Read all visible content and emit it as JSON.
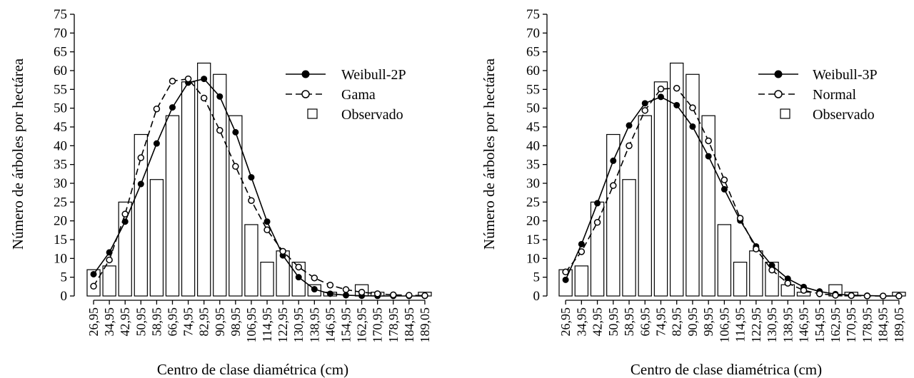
{
  "chart_data": [
    {
      "type": "bar",
      "xlabel": "Centro de clase diamétrica (cm)",
      "ylabel": "Número de árboles por hectárea",
      "ylim": [
        0,
        75
      ],
      "yticks": [
        0,
        5,
        10,
        15,
        20,
        25,
        30,
        35,
        40,
        45,
        50,
        55,
        60,
        65,
        70,
        75
      ],
      "categories": [
        "26,95",
        "34,95",
        "42,95",
        "50,95",
        "58,95",
        "66,95",
        "74,95",
        "82,95",
        "90,95",
        "98,95",
        "106,95",
        "114,95",
        "122,95",
        "130,95",
        "138,95",
        "146,95",
        "154,95",
        "162,95",
        "170,95",
        "178,95",
        "184,95",
        "189,05"
      ],
      "legend_position": "top-right",
      "series": [
        {
          "name": "Weibull-2P",
          "style": "solid",
          "marker": "filled-circle",
          "values": [
            5.8,
            11.6,
            19.8,
            29.8,
            40.6,
            50.2,
            56.8,
            57.8,
            53.1,
            43.6,
            31.6,
            19.8,
            10.8,
            5.0,
            1.8,
            0.6,
            0.2,
            0.05,
            0.02,
            0,
            0,
            0
          ]
        },
        {
          "name": "Gama",
          "style": "dashed",
          "marker": "open-circle",
          "values": [
            2.6,
            9.6,
            21.8,
            36.8,
            49.8,
            57.2,
            57.8,
            52.7,
            44.1,
            34.5,
            25.4,
            17.6,
            11.9,
            7.7,
            4.8,
            2.9,
            1.7,
            1.0,
            0.6,
            0.3,
            0.2,
            0.1
          ]
        },
        {
          "name": "Observado",
          "style": "bar",
          "values": [
            7,
            8,
            25,
            43,
            31,
            48,
            57,
            62,
            59,
            48,
            19,
            9,
            12,
            9,
            3,
            1,
            0,
            3,
            1,
            0,
            0,
            1
          ]
        }
      ]
    },
    {
      "type": "bar",
      "xlabel": "Centro de clase diamétrica (cm)",
      "ylabel": "Número de árboles por hectárea",
      "ylim": [
        0,
        75
      ],
      "yticks": [
        0,
        5,
        10,
        15,
        20,
        25,
        30,
        35,
        40,
        45,
        50,
        55,
        60,
        65,
        70,
        75
      ],
      "categories": [
        "26,95",
        "34,95",
        "42,95",
        "50,95",
        "58,95",
        "66,95",
        "74,95",
        "82,95",
        "90,95",
        "98,95",
        "106,95",
        "114,95",
        "122,95",
        "130,95",
        "138,95",
        "146,95",
        "154,95",
        "162,95",
        "170,95",
        "178,95",
        "184,95",
        "189,05"
      ],
      "legend_position": "top-right",
      "series": [
        {
          "name": "Weibull-3P",
          "style": "solid",
          "marker": "filled-circle",
          "values": [
            4.3,
            13.8,
            24.7,
            36.0,
            45.4,
            51.3,
            53.0,
            50.8,
            45.1,
            37.2,
            28.4,
            20.1,
            13.2,
            8.1,
            4.6,
            2.4,
            1.2,
            0.5,
            0.2,
            0.1,
            0,
            0
          ]
        },
        {
          "name": "Normal",
          "style": "dashed",
          "marker": "open-circle",
          "values": [
            6.4,
            11.8,
            19.6,
            29.4,
            40.0,
            49.4,
            55.1,
            55.3,
            50.1,
            41.3,
            30.9,
            20.7,
            12.5,
            6.9,
            3.4,
            1.5,
            0.6,
            0.2,
            0.1,
            0,
            0,
            0
          ]
        },
        {
          "name": "Observado",
          "style": "bar",
          "values": [
            7,
            8,
            25,
            43,
            31,
            48,
            57,
            62,
            59,
            48,
            19,
            9,
            12,
            9,
            3,
            1,
            0,
            3,
            1,
            0,
            0,
            1
          ]
        }
      ]
    }
  ]
}
